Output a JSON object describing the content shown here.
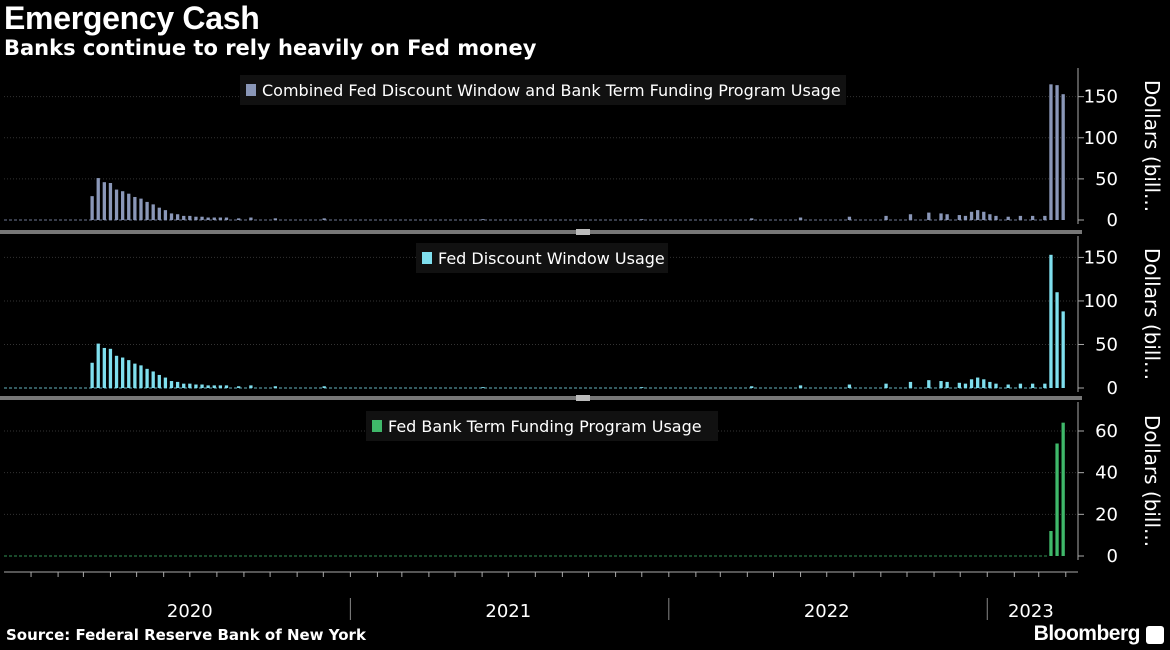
{
  "header": {
    "title": "Emergency Cash",
    "subtitle": "Banks continue to rely heavily on Fed money"
  },
  "footer": {
    "source": "Source: Federal Reserve Bank of New York",
    "brand": "Bloomberg"
  },
  "chart_data": [
    {
      "type": "bar",
      "series": [
        {
          "name": "Combined Fed Discount Window and Bank Term Funding Program Usage",
          "color": "#8a97b8"
        }
      ],
      "ylabel": "Dollars (bill...",
      "ylim": [
        0,
        180
      ],
      "yticks": [
        0,
        50,
        100,
        150
      ],
      "points": [
        {
          "x": "2020-03-11",
          "y": 29
        },
        {
          "x": "2020-03-18",
          "y": 51
        },
        {
          "x": "2020-03-25",
          "y": 46
        },
        {
          "x": "2020-04-01",
          "y": 45
        },
        {
          "x": "2020-04-08",
          "y": 37
        },
        {
          "x": "2020-04-15",
          "y": 35
        },
        {
          "x": "2020-04-22",
          "y": 32
        },
        {
          "x": "2020-04-29",
          "y": 28
        },
        {
          "x": "2020-05-06",
          "y": 26
        },
        {
          "x": "2020-05-13",
          "y": 22
        },
        {
          "x": "2020-05-20",
          "y": 19
        },
        {
          "x": "2020-05-27",
          "y": 15
        },
        {
          "x": "2020-06-03",
          "y": 12
        },
        {
          "x": "2020-06-10",
          "y": 8
        },
        {
          "x": "2020-06-17",
          "y": 7
        },
        {
          "x": "2020-06-24",
          "y": 5
        },
        {
          "x": "2020-07-01",
          "y": 5
        },
        {
          "x": "2020-07-08",
          "y": 4
        },
        {
          "x": "2020-07-15",
          "y": 4
        },
        {
          "x": "2020-07-22",
          "y": 3
        },
        {
          "x": "2020-07-29",
          "y": 3
        },
        {
          "x": "2020-08-05",
          "y": 3
        },
        {
          "x": "2020-08-12",
          "y": 3
        },
        {
          "x": "2020-08-26",
          "y": 2
        },
        {
          "x": "2020-09-09",
          "y": 3
        },
        {
          "x": "2020-10-07",
          "y": 2
        },
        {
          "x": "2020-12-02",
          "y": 2
        },
        {
          "x": "2021-06-02",
          "y": 1
        },
        {
          "x": "2021-12-01",
          "y": 1
        },
        {
          "x": "2022-04-06",
          "y": 2
        },
        {
          "x": "2022-06-01",
          "y": 3
        },
        {
          "x": "2022-07-27",
          "y": 4
        },
        {
          "x": "2022-09-07",
          "y": 5
        },
        {
          "x": "2022-10-05",
          "y": 7
        },
        {
          "x": "2022-10-26",
          "y": 9
        },
        {
          "x": "2022-11-09",
          "y": 8
        },
        {
          "x": "2022-11-16",
          "y": 7
        },
        {
          "x": "2022-11-30",
          "y": 6
        },
        {
          "x": "2022-12-07",
          "y": 5
        },
        {
          "x": "2022-12-14",
          "y": 10
        },
        {
          "x": "2022-12-21",
          "y": 12
        },
        {
          "x": "2022-12-28",
          "y": 10
        },
        {
          "x": "2023-01-04",
          "y": 7
        },
        {
          "x": "2023-01-11",
          "y": 5
        },
        {
          "x": "2023-01-25",
          "y": 4
        },
        {
          "x": "2023-02-08",
          "y": 5
        },
        {
          "x": "2023-02-22",
          "y": 5
        },
        {
          "x": "2023-03-08",
          "y": 5
        },
        {
          "x": "2023-03-15",
          "y": 165
        },
        {
          "x": "2023-03-22",
          "y": 164
        },
        {
          "x": "2023-03-29",
          "y": 153
        }
      ]
    },
    {
      "type": "bar",
      "series": [
        {
          "name": "Fed Discount Window Usage",
          "color": "#7fdfee"
        }
      ],
      "ylabel": "Dollars (bill...",
      "ylim": [
        0,
        170
      ],
      "yticks": [
        0,
        50,
        100,
        150
      ],
      "points": [
        {
          "x": "2020-03-11",
          "y": 29
        },
        {
          "x": "2020-03-18",
          "y": 51
        },
        {
          "x": "2020-03-25",
          "y": 46
        },
        {
          "x": "2020-04-01",
          "y": 45
        },
        {
          "x": "2020-04-08",
          "y": 37
        },
        {
          "x": "2020-04-15",
          "y": 35
        },
        {
          "x": "2020-04-22",
          "y": 32
        },
        {
          "x": "2020-04-29",
          "y": 28
        },
        {
          "x": "2020-05-06",
          "y": 26
        },
        {
          "x": "2020-05-13",
          "y": 22
        },
        {
          "x": "2020-05-20",
          "y": 19
        },
        {
          "x": "2020-05-27",
          "y": 15
        },
        {
          "x": "2020-06-03",
          "y": 12
        },
        {
          "x": "2020-06-10",
          "y": 8
        },
        {
          "x": "2020-06-17",
          "y": 7
        },
        {
          "x": "2020-06-24",
          "y": 5
        },
        {
          "x": "2020-07-01",
          "y": 5
        },
        {
          "x": "2020-07-08",
          "y": 4
        },
        {
          "x": "2020-07-15",
          "y": 4
        },
        {
          "x": "2020-07-22",
          "y": 3
        },
        {
          "x": "2020-07-29",
          "y": 3
        },
        {
          "x": "2020-08-05",
          "y": 3
        },
        {
          "x": "2020-08-12",
          "y": 3
        },
        {
          "x": "2020-08-26",
          "y": 2
        },
        {
          "x": "2020-09-09",
          "y": 3
        },
        {
          "x": "2020-10-07",
          "y": 2
        },
        {
          "x": "2020-12-02",
          "y": 2
        },
        {
          "x": "2021-06-02",
          "y": 1
        },
        {
          "x": "2021-12-01",
          "y": 1
        },
        {
          "x": "2022-04-06",
          "y": 2
        },
        {
          "x": "2022-06-01",
          "y": 3
        },
        {
          "x": "2022-07-27",
          "y": 4
        },
        {
          "x": "2022-09-07",
          "y": 5
        },
        {
          "x": "2022-10-05",
          "y": 7
        },
        {
          "x": "2022-10-26",
          "y": 9
        },
        {
          "x": "2022-11-09",
          "y": 8
        },
        {
          "x": "2022-11-16",
          "y": 7
        },
        {
          "x": "2022-11-30",
          "y": 6
        },
        {
          "x": "2022-12-07",
          "y": 5
        },
        {
          "x": "2022-12-14",
          "y": 10
        },
        {
          "x": "2022-12-21",
          "y": 12
        },
        {
          "x": "2022-12-28",
          "y": 10
        },
        {
          "x": "2023-01-04",
          "y": 7
        },
        {
          "x": "2023-01-11",
          "y": 5
        },
        {
          "x": "2023-01-25",
          "y": 4
        },
        {
          "x": "2023-02-08",
          "y": 5
        },
        {
          "x": "2023-02-22",
          "y": 5
        },
        {
          "x": "2023-03-08",
          "y": 5
        },
        {
          "x": "2023-03-15",
          "y": 153
        },
        {
          "x": "2023-03-22",
          "y": 110
        },
        {
          "x": "2023-03-29",
          "y": 88
        }
      ]
    },
    {
      "type": "bar",
      "series": [
        {
          "name": "Fed Bank Term Funding Program Usage",
          "color": "#3fb86a"
        }
      ],
      "ylabel": "Dollars (bill...",
      "ylim": [
        0,
        72
      ],
      "yticks": [
        0,
        20,
        40,
        60
      ],
      "points": [
        {
          "x": "2023-03-15",
          "y": 12
        },
        {
          "x": "2023-03-22",
          "y": 54
        },
        {
          "x": "2023-03-29",
          "y": 64
        }
      ]
    }
  ],
  "x_axis": {
    "range": [
      "2019-12-01",
      "2023-04-15"
    ],
    "year_labels": [
      {
        "label": "2020",
        "date": "2020-07-01"
      },
      {
        "label": "2021",
        "date": "2021-07-01"
      },
      {
        "label": "2022",
        "date": "2022-07-01"
      },
      {
        "label": "2023",
        "date": "2023-02-20"
      }
    ],
    "year_separators": [
      "2021-01-01",
      "2022-01-01",
      "2023-01-01"
    ]
  }
}
